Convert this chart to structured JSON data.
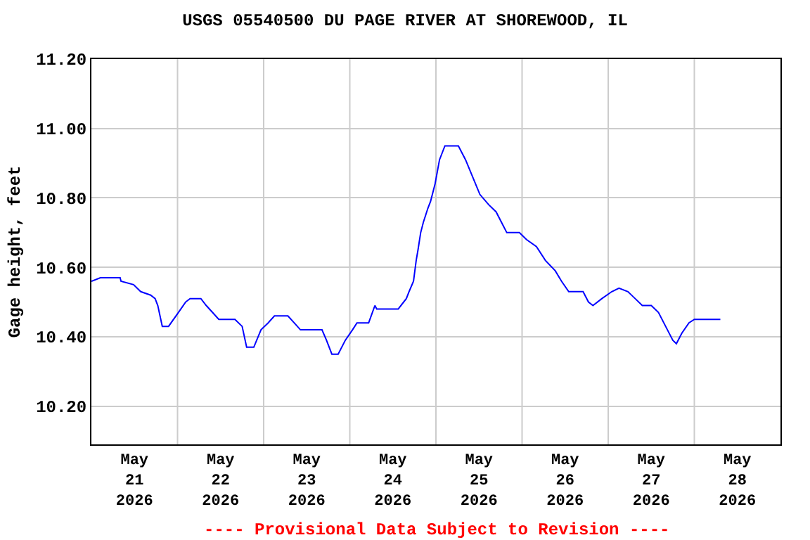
{
  "chart_data": {
    "type": "line",
    "title": "USGS 05540500 DU PAGE RIVER AT SHOREWOOD, IL",
    "ylabel": "Gage height, feet",
    "annotations": [
      "---- Provisional Data Subject to Revision ----"
    ],
    "x": [
      "2026-05-21T00:00",
      "2026-05-21T02:30",
      "2026-05-21T08:00",
      "2026-05-21T08:15",
      "2026-05-21T11:45",
      "2026-05-21T13:45",
      "2026-05-21T16:30",
      "2026-05-21T17:45",
      "2026-05-21T18:30",
      "2026-05-21T19:45",
      "2026-05-21T21:30",
      "2026-05-22T00:15",
      "2026-05-22T02:15",
      "2026-05-22T03:30",
      "2026-05-22T06:30",
      "2026-05-22T08:00",
      "2026-05-22T11:30",
      "2026-05-22T16:00",
      "2026-05-22T18:00",
      "2026-05-22T19:15",
      "2026-05-22T21:15",
      "2026-05-22T23:15",
      "2026-05-23T01:15",
      "2026-05-23T03:00",
      "2026-05-23T06:45",
      "2026-05-23T08:30",
      "2026-05-23T10:15",
      "2026-05-23T16:15",
      "2026-05-23T17:30",
      "2026-05-23T19:00",
      "2026-05-23T20:45",
      "2026-05-23T22:45",
      "2026-05-24T00:45",
      "2026-05-24T02:00",
      "2026-05-24T05:15",
      "2026-05-24T07:00",
      "2026-05-24T07:30",
      "2026-05-24T11:15",
      "2026-05-24T13:30",
      "2026-05-24T15:45",
      "2026-05-24T16:30",
      "2026-05-24T17:45",
      "2026-05-24T18:30",
      "2026-05-24T19:00",
      "2026-05-24T19:45",
      "2026-05-24T20:30",
      "2026-05-24T21:45",
      "2026-05-24T22:30",
      "2026-05-24T23:45",
      "2026-05-25T01:00",
      "2026-05-25T02:30",
      "2026-05-25T06:15",
      "2026-05-25T08:15",
      "2026-05-25T10:15",
      "2026-05-25T12:15",
      "2026-05-25T14:45",
      "2026-05-25T16:45",
      "2026-05-25T18:45",
      "2026-05-25T19:45",
      "2026-05-25T23:15",
      "2026-05-26T01:15",
      "2026-05-26T04:00",
      "2026-05-26T06:30",
      "2026-05-26T09:15",
      "2026-05-26T11:00",
      "2026-05-26T13:00",
      "2026-05-26T17:00",
      "2026-05-26T18:30",
      "2026-05-26T19:45",
      "2026-05-26T22:15",
      "2026-05-27T01:00",
      "2026-05-27T03:00",
      "2026-05-27T05:30",
      "2026-05-27T07:30",
      "2026-05-27T09:30",
      "2026-05-27T12:00",
      "2026-05-27T14:00",
      "2026-05-27T16:00",
      "2026-05-27T18:00",
      "2026-05-27T19:00",
      "2026-05-27T20:30",
      "2026-05-27T22:30",
      "2026-05-28T00:00",
      "2026-05-28T07:15"
    ],
    "series": [
      {
        "color": "#0000ff",
        "values": [
          10.56,
          10.57,
          10.57,
          10.56,
          10.55,
          10.53,
          10.52,
          10.51,
          10.49,
          10.43,
          10.43,
          10.47,
          10.5,
          10.51,
          10.51,
          10.49,
          10.45,
          10.45,
          10.43,
          10.37,
          10.37,
          10.42,
          10.44,
          10.46,
          10.46,
          10.44,
          10.42,
          10.42,
          10.39,
          10.35,
          10.35,
          10.39,
          10.42,
          10.44,
          10.44,
          10.49,
          10.48,
          10.48,
          10.48,
          10.51,
          10.53,
          10.56,
          10.62,
          10.65,
          10.7,
          10.73,
          10.77,
          10.79,
          10.84,
          10.91,
          10.95,
          10.95,
          10.91,
          10.86,
          10.81,
          10.78,
          10.76,
          10.72,
          10.7,
          10.7,
          10.68,
          10.66,
          10.62,
          10.59,
          10.56,
          10.53,
          10.53,
          10.5,
          10.49,
          10.51,
          10.53,
          10.54,
          10.53,
          10.51,
          10.49,
          10.49,
          10.47,
          10.43,
          10.39,
          10.38,
          10.41,
          10.44,
          10.45,
          10.45
        ]
      }
    ],
    "xlim": [
      "2026-05-21T00:00",
      "2026-05-29T00:00"
    ],
    "xticks": [
      {
        "value": "2026-05-21T12:00",
        "label": "May\n21\n2026"
      },
      {
        "value": "2026-05-22T12:00",
        "label": "May\n22\n2026"
      },
      {
        "value": "2026-05-23T12:00",
        "label": "May\n23\n2026"
      },
      {
        "value": "2026-05-24T12:00",
        "label": "May\n24\n2026"
      },
      {
        "value": "2026-05-25T12:00",
        "label": "May\n25\n2026"
      },
      {
        "value": "2026-05-26T12:00",
        "label": "May\n26\n2026"
      },
      {
        "value": "2026-05-27T12:00",
        "label": "May\n27\n2026"
      },
      {
        "value": "2026-05-28T12:00",
        "label": "May\n28\n2026"
      },
      {
        "value": "2026-05-22T00:00",
        "label": null
      },
      {
        "value": "2026-05-23T00:00",
        "label": null
      },
      {
        "value": "2026-05-24T00:00",
        "label": null
      },
      {
        "value": "2026-05-25T00:00",
        "label": null
      },
      {
        "value": "2026-05-26T00:00",
        "label": null
      },
      {
        "value": "2026-05-27T00:00",
        "label": null
      },
      {
        "value": "2026-05-28T00:00",
        "label": null
      }
    ],
    "ylim": [
      10.09,
      11.2
    ],
    "yticks": [
      {
        "value": 10.2,
        "label": "10.20"
      },
      {
        "value": 10.4,
        "label": "10.40"
      },
      {
        "value": 10.6,
        "label": "10.60"
      },
      {
        "value": 10.8,
        "label": "10.80"
      },
      {
        "value": 11.0,
        "label": "11.00"
      },
      {
        "value": 11.2,
        "label": "11.20"
      }
    ],
    "grid": true,
    "legend": false,
    "marker": "none",
    "line_style": "solid"
  }
}
